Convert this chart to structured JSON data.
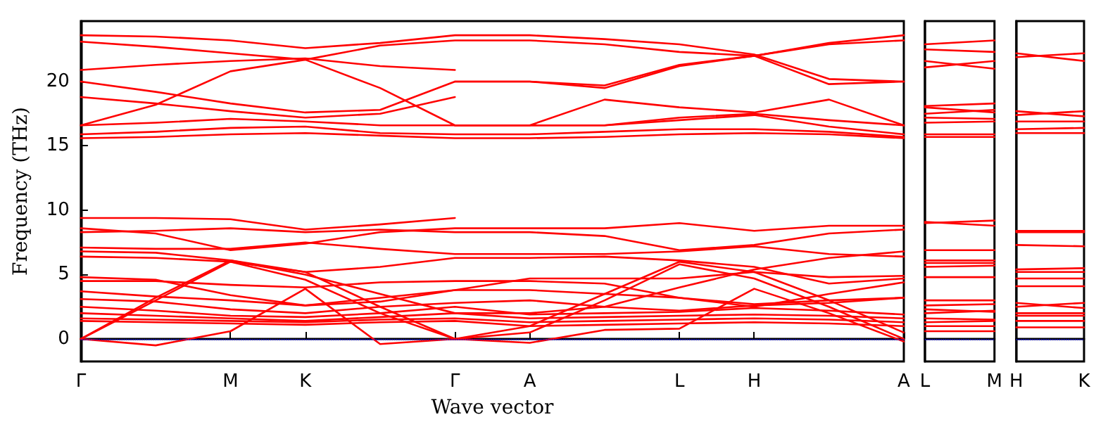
{
  "chart_data": [
    {
      "type": "line",
      "ylabel": "Frequency (THz)",
      "xlabel": "Wave vector",
      "color": "#ff0000",
      "grid": false,
      "categories": [
        "Γ",
        null,
        "M",
        "K",
        null,
        "Γ",
        "A",
        null,
        "L",
        "H",
        null,
        "A"
      ],
      "ylim": [
        -1.75,
        24.7
      ],
      "yticks": [
        0,
        5,
        10,
        15,
        20
      ],
      "ref_lines": [
        {
          "axis": "y",
          "value": 0,
          "color": "#0000ff",
          "line_style": "dotted"
        }
      ],
      "series": [
        {
          "values": [
            23.6,
            23.5,
            23.2,
            22.6,
            23.0,
            23.6,
            23.6,
            23.3,
            22.9,
            22.1,
            20.2,
            20.0
          ]
        },
        {
          "values": [
            23.1,
            22.7,
            22.2,
            21.7,
            19.5,
            16.6,
            16.6,
            18.6,
            18.0,
            17.6,
            18.6,
            16.6
          ]
        },
        {
          "values": [
            16.6,
            18.2,
            20.8,
            21.7,
            22.8,
            23.2,
            23.2,
            22.9,
            22.3,
            22.0,
            19.8,
            20.0
          ]
        },
        {
          "values": [
            20.9,
            21.3,
            21.6,
            21.8,
            21.2,
            20.9,
            null,
            null,
            null,
            null,
            null,
            null
          ]
        },
        {
          "values": [
            20.0,
            19.2,
            18.3,
            17.6,
            17.8,
            20.0,
            20.0,
            19.5,
            21.2,
            22.0,
            23.0,
            23.6
          ]
        },
        {
          "values": [
            18.8,
            18.3,
            17.7,
            17.2,
            17.5,
            18.8,
            null,
            null,
            null,
            null,
            null,
            null
          ]
        },
        {
          "values": [
            null,
            null,
            null,
            null,
            null,
            20.0,
            20.0,
            19.7,
            21.3,
            22.0,
            22.9,
            23.2
          ]
        },
        {
          "values": [
            16.6,
            16.8,
            17.1,
            16.9,
            16.6,
            16.6,
            16.6,
            16.6,
            17.2,
            17.5,
            17.0,
            16.6
          ]
        },
        {
          "values": [
            null,
            null,
            null,
            null,
            null,
            16.6,
            16.6,
            16.6,
            17.0,
            17.4,
            16.5,
            15.9
          ]
        },
        {
          "values": [
            15.9,
            16.1,
            16.4,
            16.5,
            16.0,
            15.9,
            15.9,
            16.1,
            16.3,
            16.3,
            16.1,
            15.7
          ]
        },
        {
          "values": [
            15.6,
            15.7,
            15.9,
            16.0,
            15.8,
            15.6,
            15.6,
            15.7,
            15.9,
            16.0,
            15.9,
            15.6
          ]
        },
        {
          "values": [
            9.4,
            9.4,
            9.3,
            8.5,
            8.9,
            9.4,
            null,
            null,
            null,
            null,
            null,
            null
          ]
        },
        {
          "values": [
            8.6,
            8.2,
            6.9,
            7.4,
            8.3,
            8.6,
            8.6,
            8.6,
            9.0,
            8.4,
            8.8,
            8.8
          ]
        },
        {
          "values": [
            8.3,
            8.4,
            8.6,
            8.3,
            8.5,
            8.3,
            8.3,
            8.0,
            6.9,
            7.3,
            8.2,
            8.5
          ]
        },
        {
          "values": [
            7.1,
            7.0,
            7.0,
            7.5,
            7.0,
            6.6,
            6.6,
            6.6,
            6.8,
            7.2,
            6.6,
            6.4
          ]
        },
        {
          "values": [
            6.8,
            6.7,
            6.1,
            5.0,
            3.5,
            2.0,
            2.0,
            2.5,
            4.0,
            5.4,
            6.3,
            6.8
          ]
        },
        {
          "values": [
            6.4,
            6.3,
            6.0,
            5.2,
            5.6,
            6.3,
            6.3,
            6.4,
            6.1,
            5.6,
            4.3,
            4.7
          ]
        },
        {
          "values": [
            4.8,
            4.6,
            3.4,
            2.6,
            3.2,
            3.8,
            4.7,
            4.7,
            4.7,
            5.2,
            4.8,
            4.9
          ]
        },
        {
          "values": [
            4.5,
            4.5,
            4.2,
            4.0,
            4.4,
            4.5,
            4.5,
            4.3,
            3.2,
            2.5,
            3.5,
            4.4
          ]
        },
        {
          "values": [
            3.7,
            3.3,
            3.0,
            2.6,
            2.9,
            3.8,
            3.8,
            3.5,
            3.2,
            2.7,
            3.0,
            3.2
          ]
        },
        {
          "values": [
            3.1,
            2.9,
            2.3,
            2.0,
            2.5,
            2.8,
            3.0,
            2.5,
            2.2,
            2.6,
            2.8,
            3.2
          ]
        },
        {
          "values": [
            2.5,
            2.2,
            1.8,
            1.7,
            2.0,
            2.5,
            1.9,
            2.0,
            2.1,
            2.4,
            2.2,
            1.9
          ]
        },
        {
          "values": [
            2.0,
            1.8,
            1.6,
            1.4,
            1.7,
            2.0,
            1.6,
            1.7,
            1.8,
            1.9,
            1.8,
            1.6
          ]
        },
        {
          "values": [
            1.6,
            1.5,
            1.4,
            1.3,
            1.5,
            1.6,
            1.3,
            1.4,
            1.5,
            1.6,
            1.5,
            1.3
          ]
        },
        {
          "values": [
            1.4,
            1.3,
            1.2,
            1.1,
            1.3,
            1.4,
            1.0,
            1.1,
            1.2,
            1.3,
            1.2,
            1.0
          ]
        },
        {
          "values": [
            0,
            -0.5,
            0.6,
            3.9,
            -0.4,
            0,
            -0.3,
            0.7,
            0.8,
            3.9,
            2.0,
            -0.2
          ]
        },
        {
          "values": [
            0,
            3.0,
            6.0,
            4.6,
            2.0,
            0,
            0.5,
            3.0,
            5.8,
            4.7,
            2.5,
            0
          ]
        },
        {
          "values": [
            0,
            3.2,
            6.1,
            5.2,
            2.5,
            0,
            1.0,
            3.5,
            6.0,
            5.2,
            3.0,
            0.5
          ]
        }
      ]
    },
    {
      "type": "line",
      "color": "#ff0000",
      "tick_labels": "x",
      "categories": [
        "L",
        "M"
      ],
      "ylim": [
        -1.75,
        24.7
      ],
      "ref_lines": [
        {
          "axis": "y",
          "value": 0,
          "color": "#0000ff",
          "line_style": "dotted"
        }
      ],
      "series": [
        {
          "values": [
            22.9,
            23.2
          ]
        },
        {
          "values": [
            22.5,
            22.3
          ]
        },
        {
          "values": [
            21.6,
            21.0
          ]
        },
        {
          "values": [
            21.1,
            21.6
          ]
        },
        {
          "values": [
            18.1,
            18.3
          ]
        },
        {
          "values": [
            18.0,
            17.6
          ]
        },
        {
          "values": [
            17.5,
            17.8
          ]
        },
        {
          "values": [
            17.2,
            17.1
          ]
        },
        {
          "values": [
            16.8,
            16.9
          ]
        },
        {
          "values": [
            15.9,
            15.9
          ]
        },
        {
          "values": [
            15.7,
            15.7
          ]
        },
        {
          "values": [
            9.0,
            9.2
          ]
        },
        {
          "values": [
            9.1,
            8.8
          ]
        },
        {
          "values": [
            6.9,
            6.9
          ]
        },
        {
          "values": [
            6.1,
            6.1
          ]
        },
        {
          "values": [
            5.9,
            5.9
          ]
        },
        {
          "values": [
            5.6,
            5.7
          ]
        },
        {
          "values": [
            4.8,
            4.8
          ]
        },
        {
          "values": [
            3.0,
            3.0
          ]
        },
        {
          "values": [
            2.6,
            2.7
          ]
        },
        {
          "values": [
            2.3,
            2.1
          ]
        },
        {
          "values": [
            2.0,
            2.2
          ]
        },
        {
          "values": [
            1.6,
            1.5
          ]
        },
        {
          "values": [
            1.3,
            1.4
          ]
        },
        {
          "values": [
            1.0,
            1.0
          ]
        },
        {
          "values": [
            0.6,
            0.6
          ]
        }
      ]
    },
    {
      "type": "line",
      "color": "#ff0000",
      "tick_labels": "x",
      "categories": [
        "H",
        "K"
      ],
      "ylim": [
        -1.75,
        24.7
      ],
      "ref_lines": [
        {
          "axis": "y",
          "value": 0,
          "color": "#0000ff",
          "line_style": "dotted"
        }
      ],
      "series": [
        {
          "values": [
            21.9,
            22.2
          ]
        },
        {
          "values": [
            22.2,
            21.6
          ]
        },
        {
          "values": [
            17.4,
            17.7
          ]
        },
        {
          "values": [
            17.7,
            17.3
          ]
        },
        {
          "values": [
            16.9,
            16.9
          ]
        },
        {
          "values": [
            16.3,
            16.4
          ]
        },
        {
          "values": [
            16.0,
            16.0
          ]
        },
        {
          "values": [
            8.4,
            8.4
          ]
        },
        {
          "values": [
            8.3,
            8.3
          ]
        },
        {
          "values": [
            7.3,
            7.2
          ]
        },
        {
          "values": [
            5.4,
            5.5
          ]
        },
        {
          "values": [
            5.2,
            5.2
          ]
        },
        {
          "values": [
            4.7,
            4.7
          ]
        },
        {
          "values": [
            4.1,
            4.1
          ]
        },
        {
          "values": [
            2.5,
            2.8
          ]
        },
        {
          "values": [
            2.8,
            2.4
          ]
        },
        {
          "values": [
            2.0,
            2.0
          ]
        },
        {
          "values": [
            1.8,
            1.8
          ]
        },
        {
          "values": [
            1.4,
            1.4
          ]
        },
        {
          "values": [
            0.9,
            0.9
          ]
        }
      ]
    }
  ]
}
